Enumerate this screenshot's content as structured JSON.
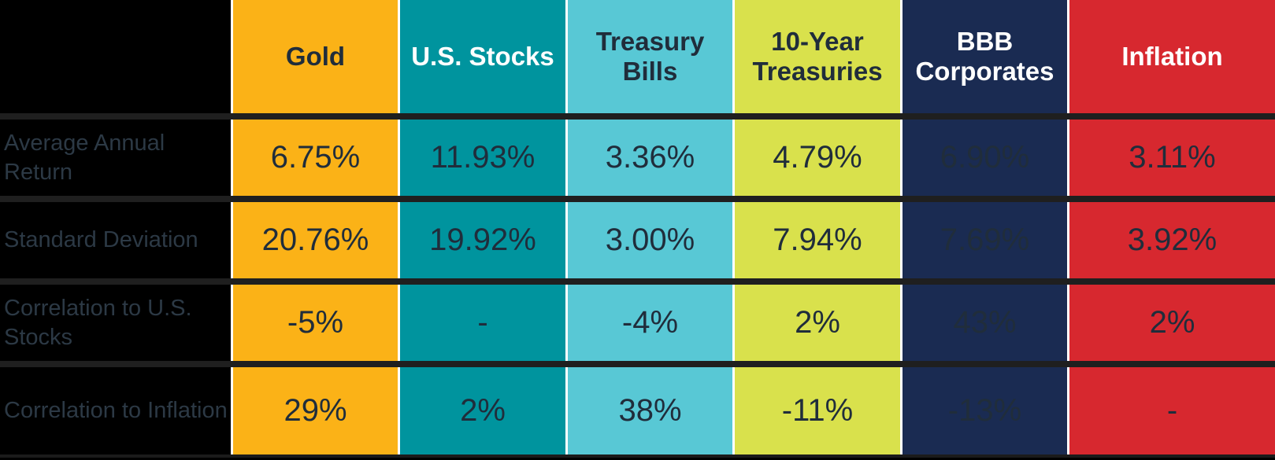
{
  "colors": {
    "background": "#000000",
    "row_separator": "#1F1F1F",
    "column_separator": "#FFFFFF",
    "value_text": "#202D3B",
    "row_label_text": "#2C3945",
    "header_text_light": "#FFFFFF",
    "columns": {
      "gold": "#FBB217",
      "us_stocks": "#00949E",
      "treasury_bills": "#58C8D5",
      "ten_year_treasuries": "#D9E14C",
      "bbb_corporates": "#1A2B52",
      "inflation": "#D7282F"
    }
  },
  "table": {
    "columns": [
      {
        "label": "Gold"
      },
      {
        "label": "U.S. Stocks"
      },
      {
        "label": "Treasury Bills"
      },
      {
        "label": "10-Year Treasuries"
      },
      {
        "label": "BBB Corporates"
      },
      {
        "label": "Inflation"
      }
    ],
    "rows": [
      {
        "label": "Average Annual Return",
        "values": [
          "6.75%",
          "11.93%",
          "3.36%",
          "4.79%",
          "6.90%",
          "3.11%"
        ]
      },
      {
        "label": "Standard Deviation",
        "values": [
          "20.76%",
          "19.92%",
          "3.00%",
          "7.94%",
          "7.69%",
          "3.92%"
        ]
      },
      {
        "label": "Correlation to U.S. Stocks",
        "values": [
          "-5%",
          "-",
          "-4%",
          "2%",
          "43%",
          "2%"
        ]
      },
      {
        "label": "Correlation to Inflation",
        "values": [
          "29%",
          "2%",
          "38%",
          "-11%",
          "-13%",
          "-"
        ]
      }
    ]
  },
  "chart_data": {
    "type": "table",
    "columns": [
      "Gold",
      "U.S. Stocks",
      "Treasury Bills",
      "10-Year Treasuries",
      "BBB Corporates",
      "Inflation"
    ],
    "rows": [
      {
        "label": "Average Annual Return",
        "values": [
          "6.75%",
          "11.93%",
          "3.36%",
          "4.79%",
          "6.90%",
          "3.11%"
        ]
      },
      {
        "label": "Standard Deviation",
        "values": [
          "20.76%",
          "19.92%",
          "3.00%",
          "7.94%",
          "7.69%",
          "3.92%"
        ]
      },
      {
        "label": "Correlation to U.S. Stocks",
        "values": [
          "-5%",
          "-",
          "-4%",
          "2%",
          "43%",
          "2%"
        ]
      },
      {
        "label": "Correlation to Inflation",
        "values": [
          "29%",
          "2%",
          "38%",
          "-11%",
          "-13%",
          "-"
        ]
      }
    ]
  }
}
